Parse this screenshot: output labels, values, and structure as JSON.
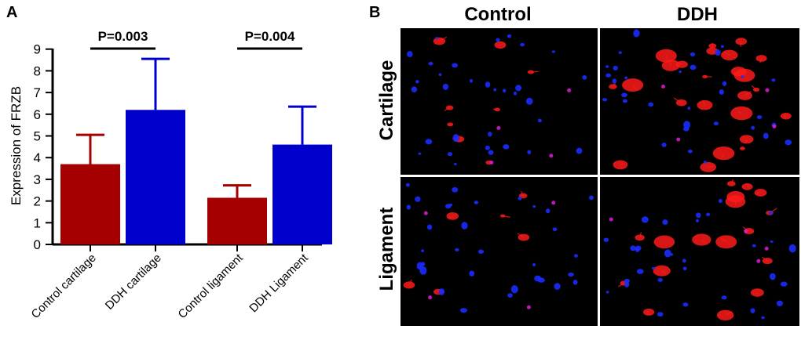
{
  "panel_a_label": "A",
  "panel_b_label": "B",
  "chart_data": {
    "type": "bar",
    "title": "",
    "xlabel": "",
    "ylabel": "Expression of FRZB",
    "ylim": [
      0,
      9
    ],
    "yticks": [
      0,
      1,
      2,
      3,
      4,
      5,
      6,
      7,
      8,
      9
    ],
    "categories": [
      "Control cartilage",
      "DDH cartilage",
      "Control ligament",
      "DDH Ligament"
    ],
    "values": [
      3.7,
      6.2,
      2.15,
      4.6
    ],
    "error_upper": [
      5.05,
      8.55,
      2.72,
      6.35
    ],
    "bar_colors": [
      "#a50000",
      "#0000cc",
      "#a50000",
      "#0000cc"
    ],
    "significance": [
      {
        "from": 0,
        "to": 1,
        "label": "P=0.003"
      },
      {
        "from": 2,
        "to": 3,
        "label": "P=0.004"
      }
    ],
    "grid": false
  },
  "micrographs": {
    "columns": [
      "Control",
      "DDH"
    ],
    "rows": [
      "Cartilage",
      "Ligament"
    ],
    "stain_colors": {
      "frzb": "#ff1a1a",
      "nuclei": "#1a2bff",
      "background": "#000000"
    }
  }
}
